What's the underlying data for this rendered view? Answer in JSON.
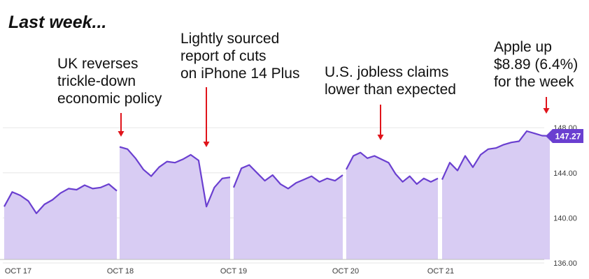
{
  "heading": "Last week...",
  "annotations": [
    {
      "lines": [
        "UK reverses",
        "trickle-down",
        "economic policy"
      ]
    },
    {
      "lines": [
        "Lightly sourced",
        "report of cuts",
        "on iPhone 14 Plus"
      ]
    },
    {
      "lines": [
        "U.S. jobless claims",
        "lower than expected"
      ]
    },
    {
      "lines": [
        "Apple up",
        "$8.89 (6.4%)",
        "for the week"
      ]
    }
  ],
  "colors": {
    "line": "#6a3fd0",
    "fill": "#d8ccf3",
    "arrow": "#e0141b",
    "badge": "#6a3fd0",
    "grid": "#e6e6e6"
  },
  "chart_data": {
    "type": "area",
    "ylim": [
      136,
      149
    ],
    "y_ticks": [
      "148.00",
      "144.00",
      "140.00",
      "136.00"
    ],
    "y_tick_values": [
      148,
      144,
      140,
      136
    ],
    "x_labels": [
      "OCT 17",
      "OCT 18",
      "OCT 19",
      "OCT 20",
      "OCT 21"
    ],
    "last_price_label": "147.27",
    "last_price": 147.27,
    "sessions": [
      {
        "day": "OCT 17",
        "values": [
          141.0,
          142.3,
          142.0,
          141.5,
          140.4,
          141.2,
          141.6,
          142.2,
          142.6,
          142.5,
          142.9,
          142.6,
          142.7,
          143.0,
          142.4
        ]
      },
      {
        "day": "OCT 18",
        "values": [
          146.3,
          146.1,
          145.3,
          144.3,
          143.7,
          144.5,
          145.0,
          144.9,
          145.2,
          145.6,
          145.1,
          141.0,
          142.7,
          143.5,
          143.6
        ]
      },
      {
        "day": "OCT 19",
        "values": [
          142.7,
          144.4,
          144.7,
          144.0,
          143.3,
          143.8,
          143.0,
          142.6,
          143.1,
          143.4,
          143.7,
          143.2,
          143.5,
          143.3,
          143.8
        ]
      },
      {
        "day": "OCT 20",
        "values": [
          144.3,
          145.5,
          145.8,
          145.3,
          145.5,
          145.2,
          144.9,
          143.9,
          143.2,
          143.7,
          143.0,
          143.5,
          143.2,
          143.5
        ]
      },
      {
        "day": "OCT 21",
        "values": [
          143.4,
          144.9,
          144.2,
          145.5,
          144.5,
          145.6,
          146.1,
          146.2,
          146.5,
          146.7,
          146.8,
          147.7,
          147.5,
          147.3,
          147.27
        ]
      }
    ]
  }
}
